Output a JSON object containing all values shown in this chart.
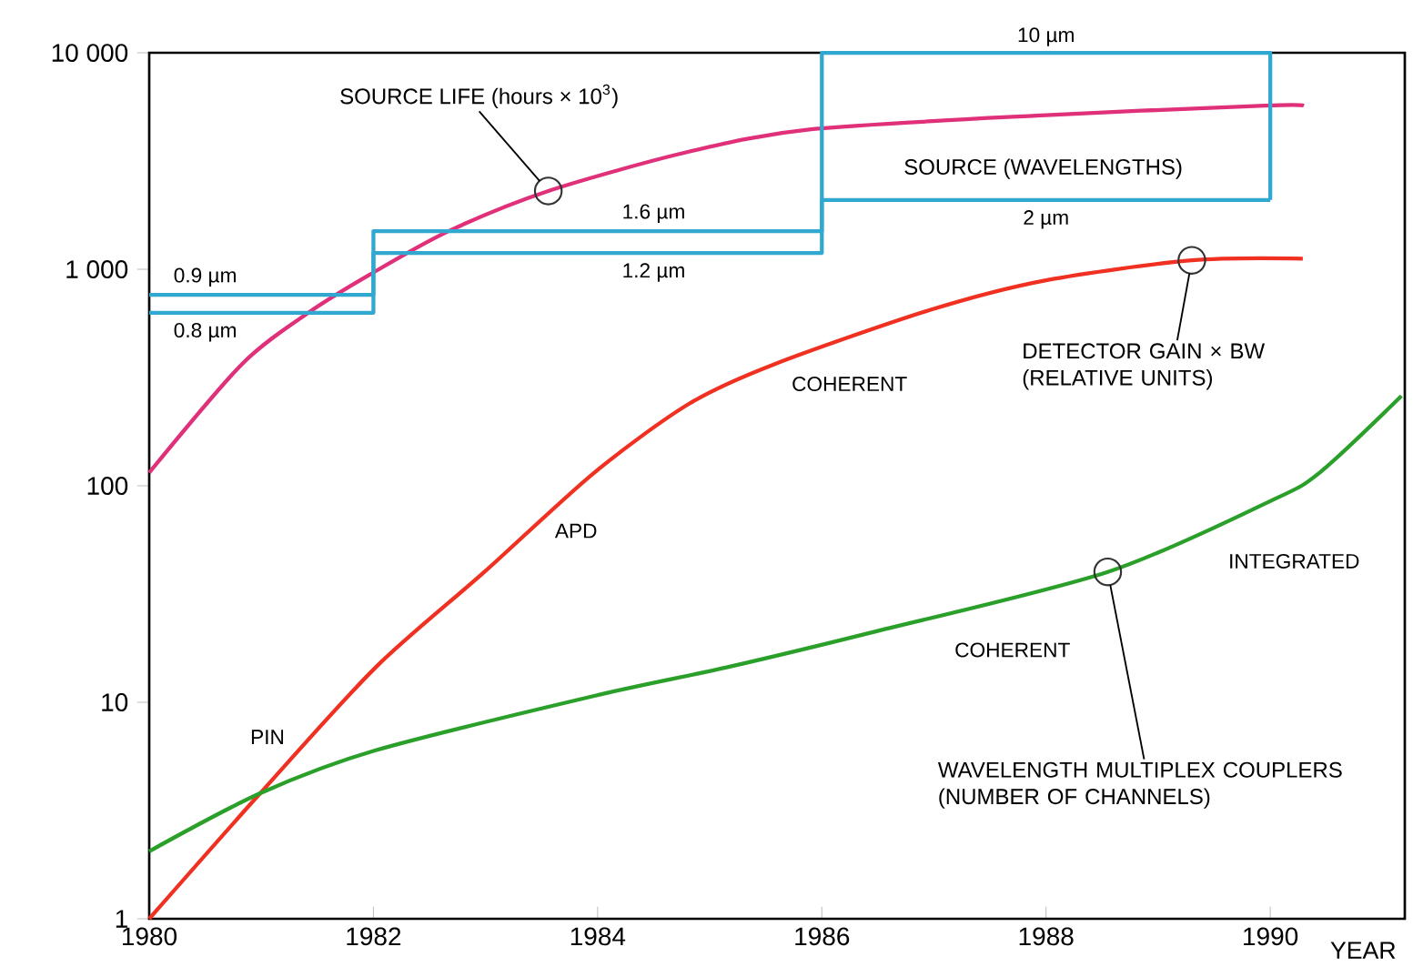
{
  "chart_data": {
    "type": "line",
    "log": true,
    "xlabel": "YEAR",
    "xlim": [
      1980,
      1991.2
    ],
    "xticks": [
      1980,
      1982,
      1984,
      1986,
      1988,
      1990
    ],
    "ylim": [
      1,
      10000
    ],
    "yticks": [
      1,
      10,
      100,
      {
        "value": 1000,
        "label": "1 000"
      },
      {
        "value": 10000,
        "label": "10 000"
      }
    ],
    "series": [
      {
        "color": "#e0307a",
        "x": [
          1980,
          1980.83,
          1981.42,
          1981.96,
          1982.67,
          1983.56,
          1984.82,
          1985.92,
          1988,
          1989.95,
          1990.3
        ],
        "values": [
          115,
          366,
          630,
          940,
          1500,
          2300,
          3500,
          4440,
          5150,
          5700,
          5700
        ]
      },
      {
        "color": "#f03020",
        "x": [
          1980,
          1980.99,
          1982.02,
          1982.99,
          1983.97,
          1984.82,
          1985.58,
          1986.97,
          1988,
          1989.3,
          1990.29
        ],
        "values": [
          1,
          3.8,
          14.5,
          40,
          115,
          240,
          365,
          650,
          890,
          1100,
          1120
        ]
      },
      {
        "color": "#2aa02a",
        "x": [
          1980,
          1980.99,
          1982.02,
          1983.97,
          1985.15,
          1986.44,
          1988.55,
          1990,
          1990.44,
          1991.17
        ],
        "values": [
          2.05,
          3.8,
          6,
          10.7,
          14.5,
          21,
          40,
          85,
          115,
          260
        ]
      },
      {
        "type": "step",
        "color": "#30a8d0",
        "x": [
          1980,
          1982,
          1986,
          1990
        ],
        "values": [
          762,
          1500,
          10000,
          2090
        ]
      },
      {
        "type": "step",
        "color": "#30a8d0",
        "x": [
          1980,
          1982,
          1986,
          1990
        ],
        "values": [
          630,
          1190,
          2090,
          2090
        ]
      }
    ],
    "annotations": [
      {
        "text": "SOURCE LIFE (hours × 10$^{3}$)",
        "x": 1983.56,
        "y": 2300
      },
      {
        "text": "DETECTOR GAIN × BW (RELATIVE UNITS)",
        "x": 1989.3,
        "y": 1100
      },
      {
        "text": "WAVELENGTH MULTIPLEX COUPLERS (NUMBER OF CHANNELS)",
        "x": 1988.55,
        "y": 40
      },
      "SOURCE (WAVELENGTHS)",
      {
        "text": "10 µm",
        "x": 1988,
        "y": 10000
      },
      {
        "text": "2 µm",
        "x": 1988,
        "y": 2090
      },
      {
        "text": "1.6 µm",
        "x": 1984.5,
        "y": 1500
      },
      {
        "text": "1.2 µm",
        "x": 1984.5,
        "y": 1190
      },
      {
        "text": "0.9 µm",
        "x": 1980.5,
        "y": 762
      },
      {
        "text": "0.8 µm",
        "x": 1980.5,
        "y": 630
      },
      {
        "text": "PIN",
        "x": 1980.99,
        "y": 3.8
      },
      {
        "text": "APD",
        "x": 1983.97,
        "y": 115
      },
      {
        "text": "COHERENT",
        "x": 1985.58,
        "y": 365
      },
      {
        "text": "COHERENT",
        "x": 1987.7,
        "y": 30
      },
      {
        "text": "INTEGRATED",
        "x": 1990,
        "y": 85
      }
    ]
  }
}
